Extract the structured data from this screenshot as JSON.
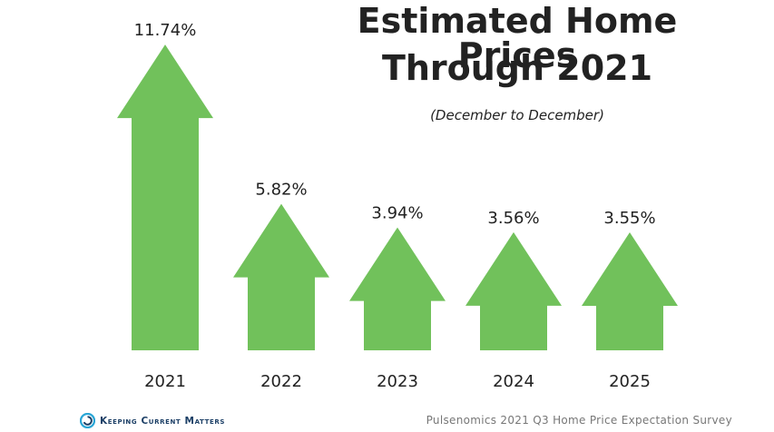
{
  "header": {
    "title_line1": "Estimated Home Prices",
    "title_line2": "Through 2021",
    "subtitle": "(December to December)"
  },
  "footer": {
    "brand": "Keeping Current Matters",
    "source": "Pulsenomics 2021 Q3 Home Price Expectation Survey"
  },
  "colors": {
    "arrow": "#71c15b",
    "text": "#222222",
    "brand": "#1c3f66",
    "brand_icon": "#29a6d6"
  },
  "chart_data": {
    "type": "bar",
    "title": "Estimated Home Prices Through 2021",
    "subtitle": "(December to December)",
    "categories": [
      "2021",
      "2022",
      "2023",
      "2024",
      "2025"
    ],
    "values": [
      11.74,
      5.82,
      3.94,
      3.56,
      3.55
    ],
    "value_labels": [
      "11.74%",
      "5.82%",
      "3.94%",
      "3.56%",
      "3.55%"
    ],
    "mark_shape": "up-arrow",
    "xlabel": "",
    "ylabel": "",
    "grid": false,
    "legend": "none"
  }
}
